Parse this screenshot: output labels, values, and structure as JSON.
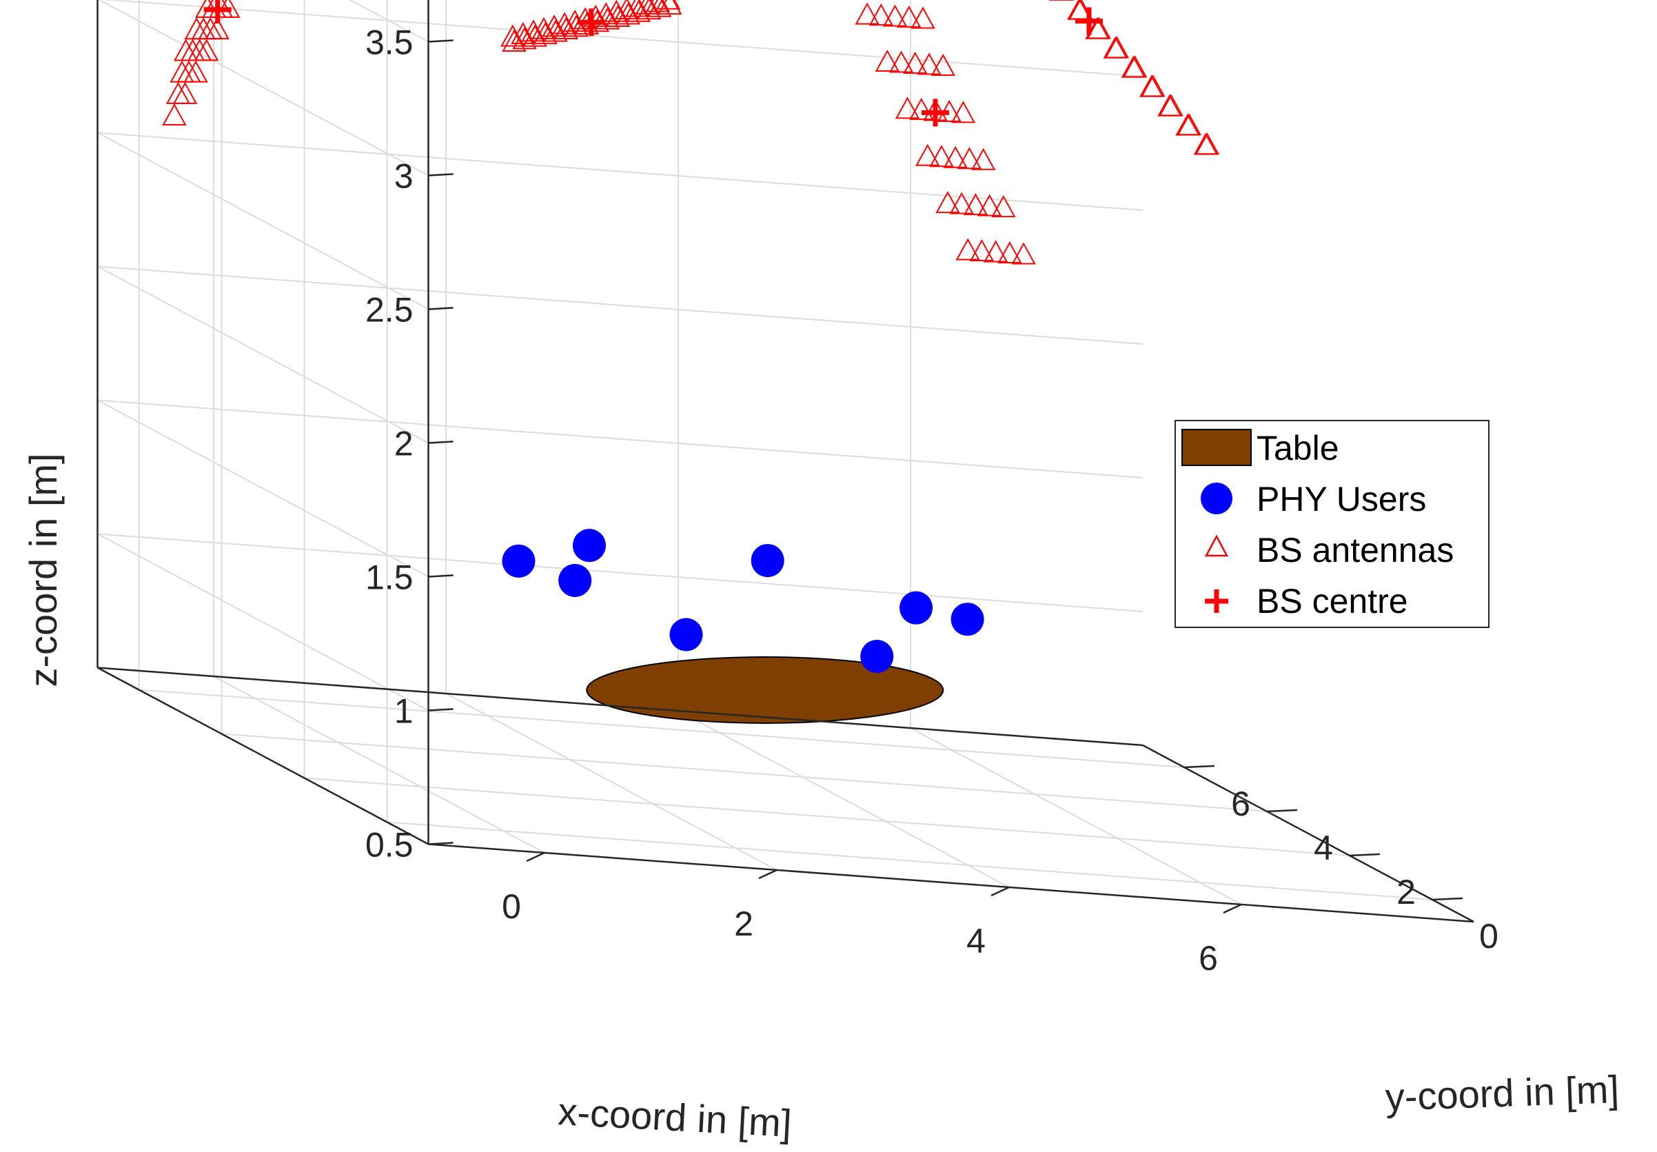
{
  "chart_data": {
    "type": "scatter",
    "projection": "3d",
    "title": "",
    "xlabel": "x-coord in [m]",
    "ylabel": "y-coord in [m]",
    "zlabel": "z-coord in [m]",
    "xlim": [
      -1,
      8
    ],
    "ylim": [
      -1,
      7
    ],
    "zlim": [
      0.5,
      3.8
    ],
    "xticks": [
      0,
      2,
      4,
      6
    ],
    "yticks": [
      0,
      2,
      4,
      6
    ],
    "zticks": [
      0.5,
      1,
      1.5,
      2,
      2.5,
      3,
      3.5
    ],
    "grid": true,
    "legend_position": "right",
    "colors": {
      "table_fill": "#7F3F00",
      "users": "#0000FF",
      "antennas": "#FF0000",
      "centre": "#FF0000",
      "axes": "#262626",
      "grid": "#DCDCDC"
    },
    "legend": [
      {
        "name": "Table",
        "marker": "patch"
      },
      {
        "name": "PHY Users",
        "marker": "circle"
      },
      {
        "name": "BS antennas",
        "marker": "triangle"
      },
      {
        "name": "BS centre",
        "marker": "plus"
      }
    ],
    "table": {
      "center": [
        3.5,
        3.5,
        0.85
      ],
      "radius": [
        1.5,
        1.5
      ]
    },
    "users": [
      [
        1.7,
        4.4,
        1.2
      ],
      [
        1.9,
        3.6,
        1.2
      ],
      [
        2.7,
        5.5,
        1.2
      ],
      [
        3.0,
        4.0,
        1.0
      ],
      [
        4.2,
        5.4,
        1.2
      ],
      [
        4.5,
        3.6,
        1.0
      ],
      [
        5.3,
        4.9,
        1.1
      ],
      [
        5.6,
        4.5,
        1.1
      ]
    ],
    "bs_centres": [
      [
        -0.5,
        5.5,
        3.1
      ],
      [
        1.0,
        7.4,
        3.5
      ],
      [
        3.5,
        7.7,
        3.0
      ],
      [
        6.0,
        6.4,
        2.85
      ],
      [
        8.0,
        8.3,
        3.1
      ]
    ],
    "bs_arrays": [
      {
        "centre": 0,
        "u": [
          0.16,
          0.19,
          0.07
        ],
        "v": [
          0.04,
          0.02,
          0.08
        ],
        "rows": 4,
        "cols": 8
      },
      {
        "centre": 1,
        "u": [
          0.14,
          0.0,
          0.0
        ],
        "v": [
          0.06,
          0.25,
          0.15
        ],
        "rows": 6,
        "cols": 6
      },
      {
        "centre": 2,
        "u": [
          0.1,
          0.03,
          0.01
        ],
        "v": [
          0.03,
          0.12,
          0.01
        ],
        "rows": 2,
        "cols": 16
      },
      {
        "centre": 3,
        "u": [
          0.12,
          0.0,
          0.0
        ],
        "v": [
          0.12,
          -0.15,
          -0.16
        ],
        "rows": 7,
        "cols": 5
      },
      {
        "centre": 4,
        "u": [
          0.12,
          -0.1,
          -0.06
        ],
        "v": [
          0.02,
          0.02,
          0.0
        ],
        "rows": 2,
        "cols": 14
      }
    ]
  }
}
